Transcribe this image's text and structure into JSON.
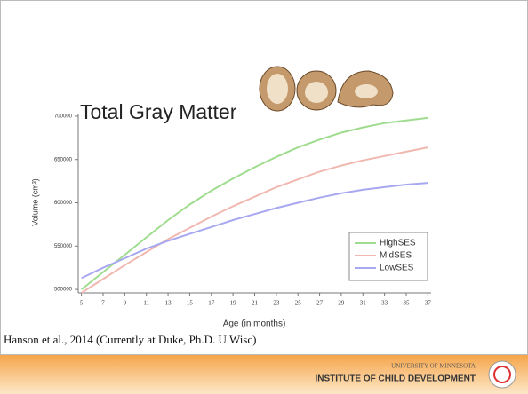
{
  "chart_data": {
    "type": "line",
    "title": "Total Gray Matter",
    "x": [
      5,
      7,
      9,
      11,
      13,
      15,
      17,
      19,
      21,
      23,
      25,
      27,
      29,
      31,
      33,
      35,
      37
    ],
    "series": [
      {
        "name": "HighSES",
        "color": "#9fdc8f",
        "values": [
          500000,
          520000,
          540000,
          560000,
          580000,
          598000,
          614000,
          628000,
          641000,
          653000,
          664000,
          673000,
          681000,
          687000,
          692000,
          695000,
          698000
        ]
      },
      {
        "name": "MidSES",
        "color": "#f0b8b0",
        "values": [
          496000,
          512000,
          528000,
          543000,
          558000,
          571000,
          584000,
          596000,
          607000,
          618000,
          627000,
          636000,
          643000,
          649000,
          654000,
          659000,
          664000
        ]
      },
      {
        "name": "LowSES",
        "color": "#a8a8f0",
        "values": [
          513000,
          525000,
          536000,
          547000,
          556000,
          564000,
          572000,
          580000,
          587000,
          594000,
          600000,
          606000,
          611000,
          615000,
          618000,
          621000,
          623000
        ]
      }
    ],
    "xlabel": "Age (in months)",
    "ylabel": "Volume (cm³)",
    "xlim": [
      4.7,
      37.3
    ],
    "ylim": [
      496000,
      703000
    ],
    "xticks": [
      5,
      7,
      9,
      11,
      13,
      15,
      17,
      19,
      21,
      23,
      25,
      27,
      29,
      31,
      33,
      35,
      37
    ],
    "yticks": [
      500000,
      550000,
      600000,
      650000,
      700000
    ],
    "legend": "lower right"
  },
  "citation": "Hanson et al., 2014 (Currently at Duke, Ph.D. U Wisc)",
  "footer": {
    "university": "UNIVERSITY OF MINNESOTA",
    "institute": "INSTITUTE OF CHILD DEVELOPMENT"
  }
}
